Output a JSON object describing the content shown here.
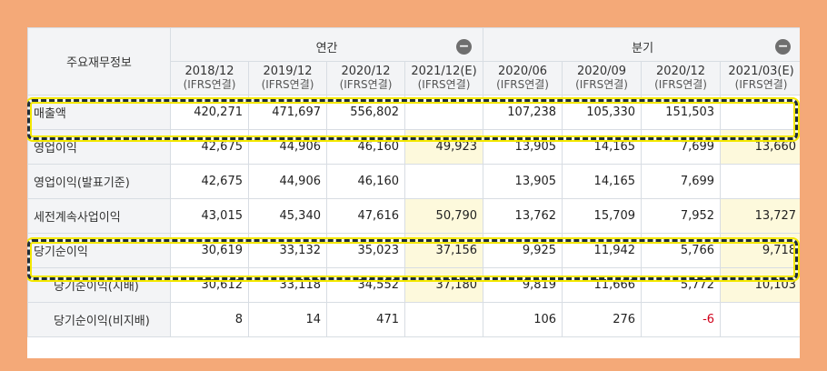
{
  "table": {
    "title": "주요재무정보",
    "groups": {
      "annual": "연간",
      "quarter": "분기"
    },
    "collapse_icon": "minus-circle-icon",
    "periods": [
      {
        "date": "2018/12",
        "sub": "(IFRS연결)"
      },
      {
        "date": "2019/12",
        "sub": "(IFRS연결)"
      },
      {
        "date": "2020/12",
        "sub": "(IFRS연결)"
      },
      {
        "date": "2021/12(E)",
        "sub": "(IFRS연결)"
      },
      {
        "date": "2020/06",
        "sub": "(IFRS연결)"
      },
      {
        "date": "2020/09",
        "sub": "(IFRS연결)"
      },
      {
        "date": "2020/12",
        "sub": "(IFRS연결)"
      },
      {
        "date": "2021/03(E)",
        "sub": "(IFRS연결)"
      }
    ],
    "rows": [
      {
        "label": "매출액",
        "values": [
          "420,271",
          "471,697",
          "556,802",
          "",
          "107,238",
          "105,330",
          "151,503",
          ""
        ]
      },
      {
        "label": "영업이익",
        "values": [
          "42,675",
          "44,906",
          "46,160",
          "49,923",
          "13,905",
          "14,165",
          "7,699",
          "13,660"
        ]
      },
      {
        "label": "영업이익(발표기준)",
        "values": [
          "42,675",
          "44,906",
          "46,160",
          "",
          "13,905",
          "14,165",
          "7,699",
          ""
        ]
      },
      {
        "label": "세전계속사업이익",
        "values": [
          "43,015",
          "45,340",
          "47,616",
          "50,790",
          "13,762",
          "15,709",
          "7,952",
          "13,727"
        ]
      },
      {
        "label": "당기순이익",
        "values": [
          "30,619",
          "33,132",
          "35,023",
          "37,156",
          "9,925",
          "11,942",
          "5,766",
          "9,718"
        ]
      },
      {
        "label": "당기순이익(지배)",
        "values": [
          "30,612",
          "33,118",
          "34,552",
          "37,180",
          "9,819",
          "11,666",
          "5,772",
          "10,103"
        ]
      },
      {
        "label": "당기순이익(비지배)",
        "values": [
          "8",
          "14",
          "471",
          "",
          "106",
          "276",
          "-6",
          ""
        ]
      }
    ]
  },
  "colors": {
    "frame": "#f4a978",
    "estimate_cell": "#fdf9dc",
    "highlight_border": "#1f2d3a",
    "highlight_glow": "#f4e800",
    "negative": "#d0021b"
  },
  "highlighted_rows": [
    "매출액",
    "당기순이익"
  ]
}
